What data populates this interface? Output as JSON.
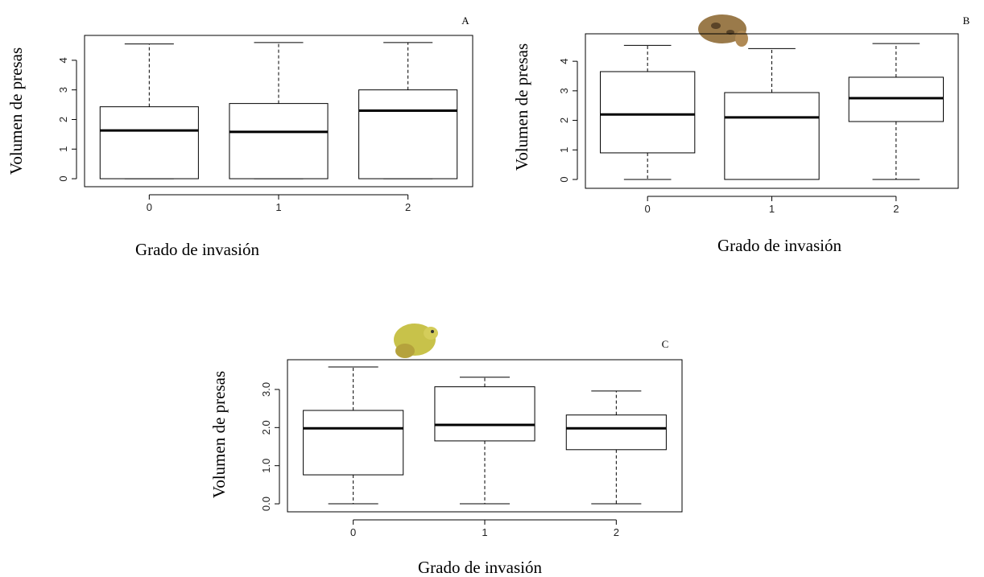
{
  "chart_data": [
    {
      "type": "box",
      "panel_label": "A",
      "y_label": "Volumen de presas",
      "x_label": "Grado de invasión",
      "categories": [
        "0",
        "1",
        "2"
      ],
      "whisker_low": [
        0,
        0,
        0
      ],
      "q1": [
        0,
        0,
        0
      ],
      "median": [
        1.63,
        1.58,
        2.3
      ],
      "q3": [
        2.43,
        2.54,
        3.0
      ],
      "whisker_high": [
        4.55,
        4.6,
        4.6
      ],
      "ylim": [
        -0.27,
        4.84
      ],
      "yticks": [
        0,
        1,
        2,
        3,
        4
      ]
    },
    {
      "type": "box",
      "panel_label": "B",
      "y_label": "Volumen de presas",
      "x_label": "Grado de invasión",
      "categories": [
        "0",
        "1",
        "2"
      ],
      "whisker_low": [
        0,
        0,
        0
      ],
      "q1": [
        0.9,
        0,
        1.96
      ],
      "median": [
        2.2,
        2.1,
        2.75
      ],
      "q3": [
        3.65,
        2.94,
        3.46
      ],
      "whisker_high": [
        4.54,
        4.43,
        4.6
      ],
      "ylim": [
        -0.3,
        4.93
      ],
      "yticks": [
        0,
        1,
        2,
        3,
        4
      ]
    },
    {
      "type": "box",
      "panel_label": "C",
      "y_label": "Volumen de presas",
      "x_label": "Grado de invasión",
      "categories": [
        "0",
        "1",
        "2"
      ],
      "whisker_low": [
        0,
        0,
        0
      ],
      "q1": [
        0.76,
        1.65,
        1.42
      ],
      "median": [
        1.98,
        2.07,
        1.98
      ],
      "q3": [
        2.45,
        3.07,
        2.33
      ],
      "whisker_high": [
        3.59,
        3.32,
        2.96
      ],
      "ylim": [
        -0.21,
        3.78
      ],
      "yticks": [
        {
          "value": 0,
          "label": "0.0"
        },
        {
          "value": 1,
          "label": "1.0"
        },
        {
          "value": 2,
          "label": "2.0"
        },
        {
          "value": 3,
          "label": "3.0"
        }
      ]
    }
  ]
}
